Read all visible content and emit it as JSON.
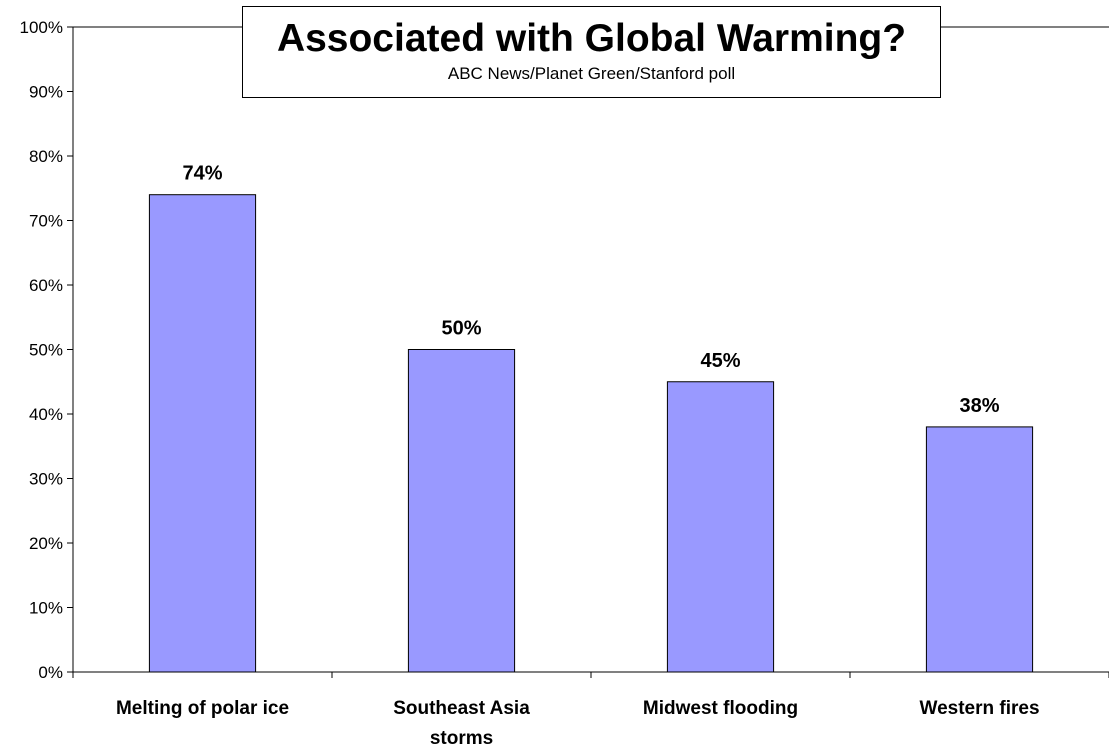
{
  "chart_data": {
    "type": "bar",
    "title": "Associated with Global Warming?",
    "subtitle": "ABC News/Planet Green/Stanford poll",
    "categories": [
      [
        "Melting of polar ice"
      ],
      [
        "Southeast Asia",
        "storms"
      ],
      [
        "Midwest flooding"
      ],
      [
        "Western fires"
      ]
    ],
    "values": [
      74,
      50,
      45,
      38
    ],
    "data_labels": [
      "74%",
      "50%",
      "45%",
      "38%"
    ],
    "xlabel": "",
    "ylabel": "",
    "ylim": [
      0,
      100
    ],
    "yticks": [
      0,
      10,
      20,
      30,
      40,
      50,
      60,
      70,
      80,
      90,
      100
    ],
    "ytick_labels": [
      "0%",
      "10%",
      "20%",
      "30%",
      "40%",
      "50%",
      "60%",
      "70%",
      "80%",
      "90%",
      "100%"
    ],
    "grid": false,
    "legend": "none",
    "colors": {
      "bar_fill": "#9999ff",
      "bar_stroke": "#000000",
      "axis": "#000000"
    }
  }
}
